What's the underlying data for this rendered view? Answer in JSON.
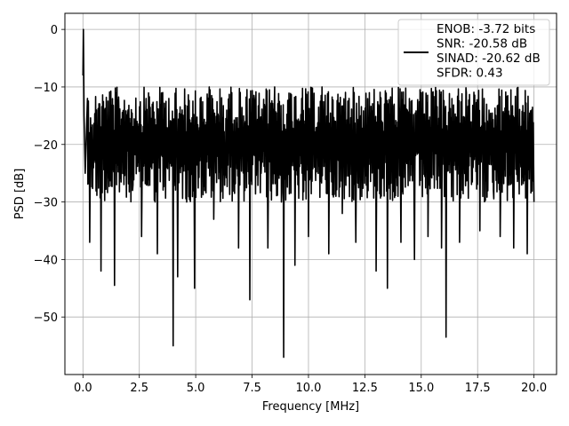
{
  "chart_data": {
    "type": "line",
    "title": "",
    "xlabel": "Frequency [MHz]",
    "ylabel": "PSD [dB]",
    "xlim": [
      -0.8,
      21.0
    ],
    "ylim": [
      -60.0,
      2.8
    ],
    "xticks": [
      0.0,
      2.5,
      5.0,
      7.5,
      10.0,
      12.5,
      15.0,
      17.5,
      20.0
    ],
    "xtick_labels": [
      "0.0",
      "2.5",
      "5.0",
      "7.5",
      "10.0",
      "12.5",
      "15.0",
      "17.5",
      "20.0"
    ],
    "yticks": [
      0,
      -10,
      -20,
      -30,
      -40,
      -50
    ],
    "ytick_labels": [
      "0",
      "−10",
      "−20",
      "−30",
      "−40",
      "−50"
    ],
    "grid": true,
    "legend_position": "top-right",
    "legend": {
      "entries": [
        "ENOB: -3.72 bits",
        "SNR: -20.58 dB",
        "SINAD: -20.62 dB",
        "SFDR: 0.43"
      ]
    },
    "series": [
      {
        "color": "#000000",
        "note_points": "approximate: dense noise floor between about -10 and -30 dB with deep dips",
        "x": [
          0.0,
          0.02,
          0.05,
          0.1,
          0.2,
          0.3,
          0.45,
          0.6,
          0.8,
          1.0,
          1.2,
          1.4,
          1.6,
          1.8,
          2.0,
          2.2,
          2.4,
          2.6,
          2.8,
          3.0,
          3.2,
          3.3,
          3.5,
          3.7,
          3.9,
          4.0,
          4.05,
          4.2,
          4.4,
          4.6,
          4.8,
          4.95,
          5.2,
          5.4,
          5.6,
          5.8,
          6.0,
          6.3,
          6.6,
          6.9,
          7.2,
          7.4,
          7.6,
          7.9,
          8.2,
          8.5,
          8.8,
          8.9,
          9.1,
          9.4,
          9.7,
          10.0,
          10.3,
          10.6,
          10.9,
          11.2,
          11.5,
          11.8,
          12.1,
          12.4,
          12.7,
          13.0,
          13.3,
          13.5,
          13.8,
          14.1,
          14.4,
          14.7,
          15.0,
          15.3,
          15.6,
          15.9,
          16.1,
          16.4,
          16.7,
          17.0,
          17.3,
          17.6,
          17.9,
          18.2,
          18.5,
          18.8,
          19.1,
          19.4,
          19.7,
          19.9,
          20.0
        ],
        "y": [
          -8.0,
          0.0,
          -15.0,
          -25.0,
          -12.0,
          -37.0,
          -20.0,
          -14.0,
          -42.0,
          -18.0,
          -13.0,
          -44.5,
          -15.0,
          -22.0,
          -14.0,
          -28.0,
          -16.0,
          -36.0,
          -12.0,
          -20.0,
          -30.0,
          -39.0,
          -13.0,
          -24.0,
          -16.0,
          -55.0,
          -25.0,
          -43.0,
          -14.0,
          -30.0,
          -20.0,
          -45.0,
          -12.0,
          -28.0,
          -10.0,
          -33.0,
          -15.0,
          -22.0,
          -11.0,
          -38.0,
          -16.0,
          -47.0,
          -12.0,
          -25.0,
          -38.0,
          -10.0,
          -30.0,
          -57.0,
          -14.0,
          -41.0,
          -12.0,
          -36.0,
          -22.0,
          -10.0,
          -39.0,
          -16.0,
          -32.0,
          -12.0,
          -37.0,
          -18.0,
          -11.0,
          -42.0,
          -20.0,
          -45.0,
          -13.0,
          -37.0,
          -17.0,
          -40.0,
          -11.0,
          -36.0,
          -20.0,
          -38.0,
          -53.5,
          -16.0,
          -37.0,
          -11.0,
          -24.0,
          -35.0,
          -13.0,
          -28.0,
          -36.0,
          -12.0,
          -38.0,
          -20.0,
          -39.0,
          -14.0,
          -30.0
        ]
      }
    ]
  }
}
